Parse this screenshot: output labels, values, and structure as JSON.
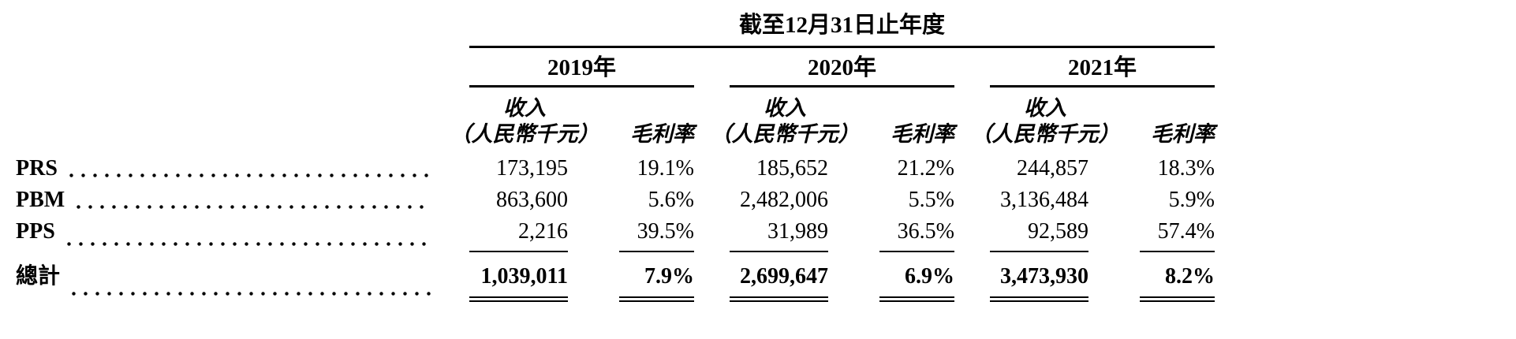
{
  "table": {
    "period_header": "截至12月31日止年度",
    "years": [
      "2019年",
      "2020年",
      "2021年"
    ],
    "column_headers": {
      "revenue_line1": "收入",
      "revenue_line2": "（人民幣千元）",
      "margin": "毛利率"
    },
    "rows": [
      {
        "label": "PRS",
        "cells": [
          {
            "revenue": "173,195",
            "margin": "19.1%"
          },
          {
            "revenue": "185,652",
            "margin": "21.2%"
          },
          {
            "revenue": "244,857",
            "margin": "18.3%"
          }
        ]
      },
      {
        "label": "PBM",
        "cells": [
          {
            "revenue": "863,600",
            "margin": "5.6%"
          },
          {
            "revenue": "2,482,006",
            "margin": "5.5%"
          },
          {
            "revenue": "3,136,484",
            "margin": "5.9%"
          }
        ]
      },
      {
        "label": "PPS",
        "cells": [
          {
            "revenue": "2,216",
            "margin": "39.5%"
          },
          {
            "revenue": "31,989",
            "margin": "36.5%"
          },
          {
            "revenue": "92,589",
            "margin": "57.4%"
          }
        ]
      }
    ],
    "total": {
      "label": "總計",
      "cells": [
        {
          "revenue": "1,039,011",
          "margin": "7.9%"
        },
        {
          "revenue": "2,699,647",
          "margin": "6.9%"
        },
        {
          "revenue": "3,473,930",
          "margin": "8.2%"
        }
      ]
    }
  }
}
